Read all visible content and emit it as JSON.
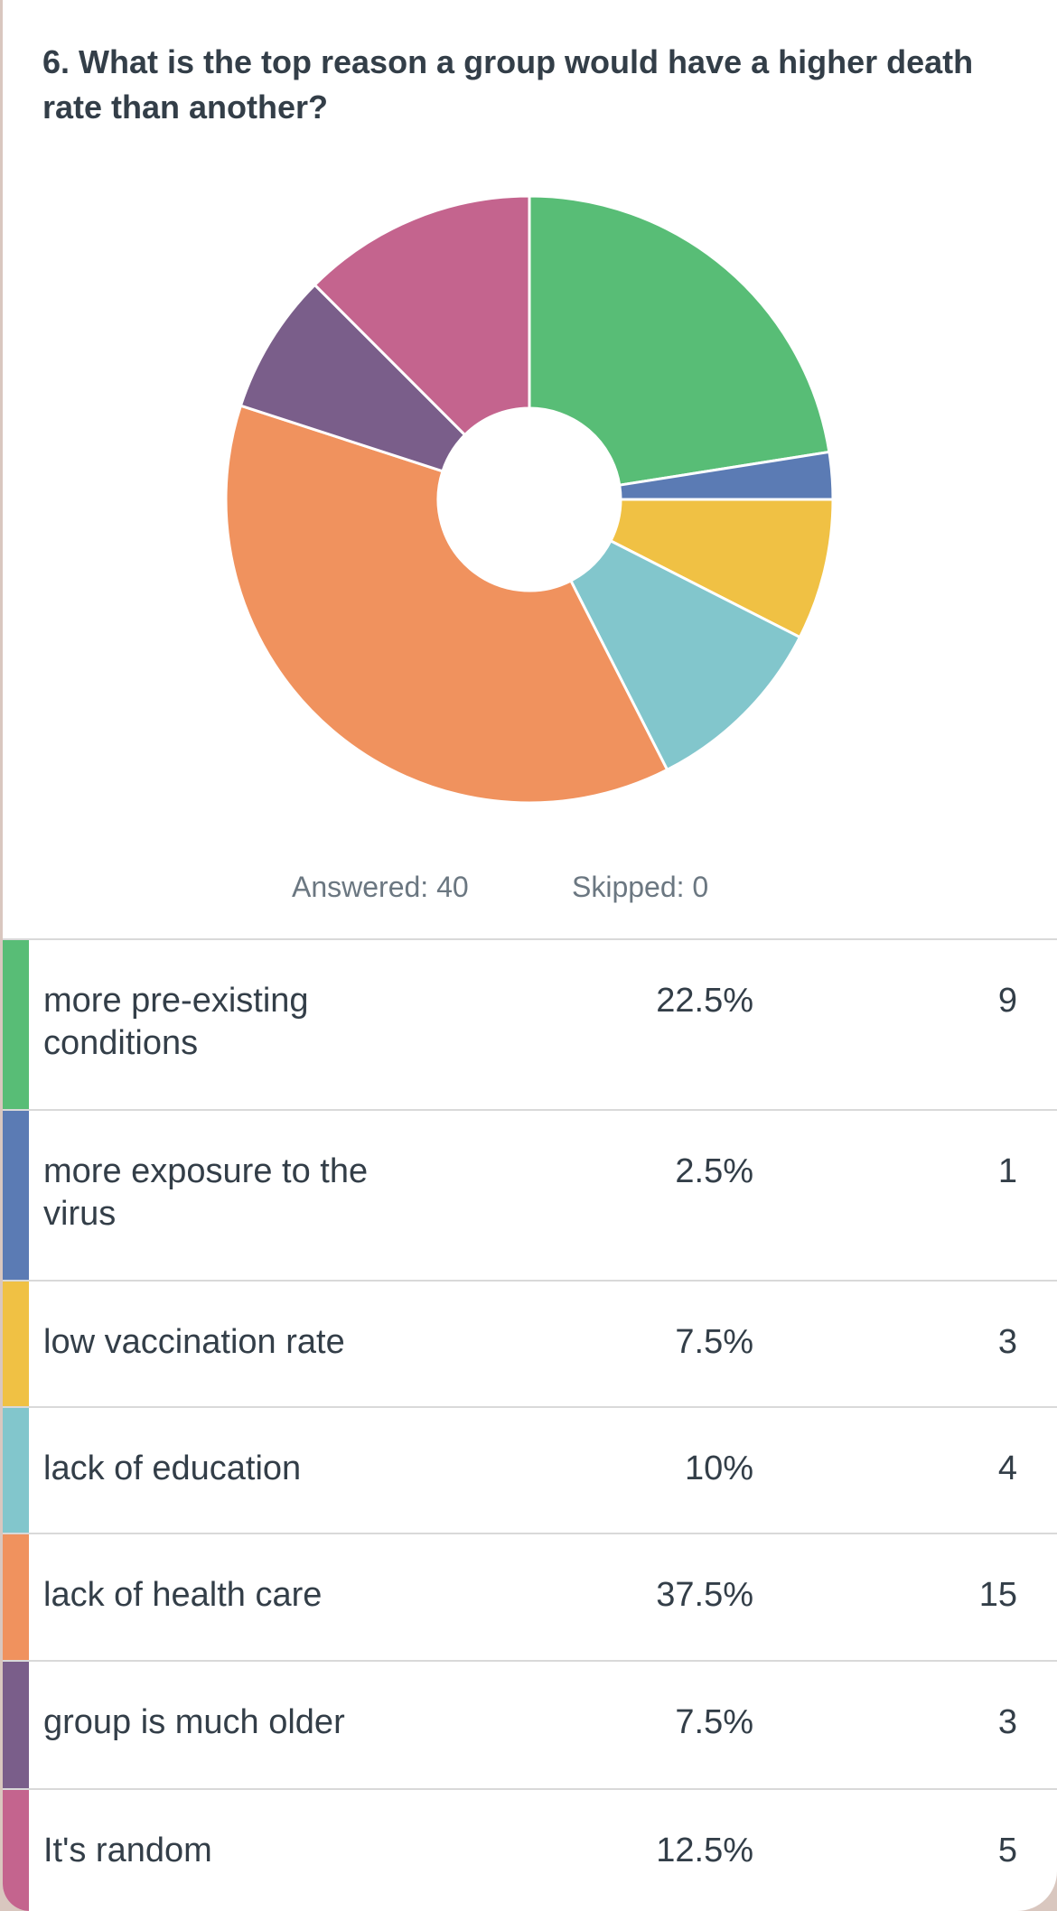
{
  "chart_data": {
    "type": "pie",
    "title": "6. What is the top reason a group would have a higher death rate than another?",
    "answered": "Answered: 40",
    "skipped": "Skipped: 0",
    "categories": [
      "more pre-existing conditions",
      "more exposure to the virus",
      "low vaccination rate",
      "lack of education",
      "lack of health care",
      "group is much older",
      "It's random"
    ],
    "values": [
      22.5,
      2.5,
      7.5,
      10,
      37.5,
      7.5,
      12.5
    ],
    "value_labels": [
      "22.5%",
      "2.5%",
      "7.5%",
      "10%",
      "37.5%",
      "7.5%",
      "12.5%"
    ],
    "counts": [
      9,
      1,
      3,
      4,
      15,
      3,
      5
    ],
    "colors": [
      "#58bd76",
      "#5b7bb4",
      "#f0c144",
      "#82c6cc",
      "#f0925e",
      "#7a5e8a",
      "#c4648e"
    ],
    "hole": true
  }
}
